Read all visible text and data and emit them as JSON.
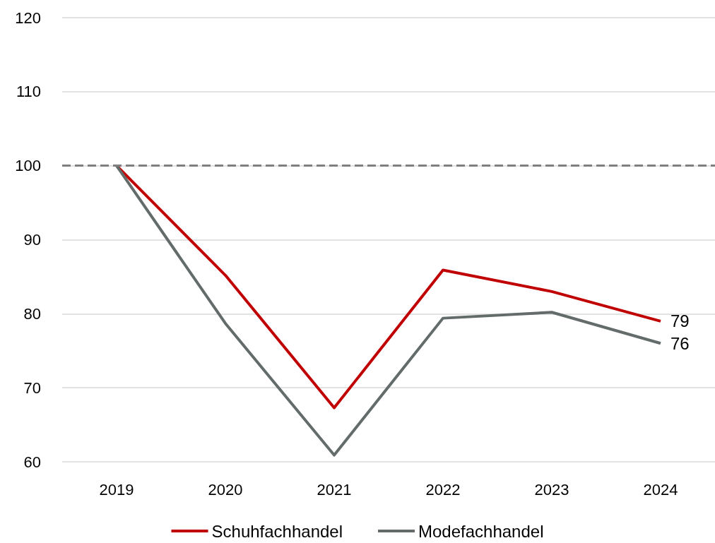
{
  "chart_data": {
    "type": "line",
    "categories": [
      "2019",
      "2020",
      "2021",
      "2022",
      "2023",
      "2024"
    ],
    "series": [
      {
        "name": "Schuhfachhandel",
        "color": "#c00000",
        "values": [
          100,
          85.2,
          67.3,
          85.9,
          83.0,
          79
        ],
        "value_labels": [
          null,
          null,
          null,
          null,
          null,
          "79"
        ]
      },
      {
        "name": "Modefachhandel",
        "color": "#636b6b",
        "values": [
          100,
          78.7,
          60.9,
          79.4,
          80.2,
          76
        ],
        "value_labels": [
          null,
          null,
          null,
          null,
          null,
          "76"
        ]
      }
    ],
    "ylim": [
      60,
      120
    ],
    "yticks": [
      60,
      70,
      80,
      90,
      100,
      110,
      120
    ],
    "ref_lines": [
      {
        "axis": "y",
        "value": 100,
        "color": "#7f7f7f",
        "line_style": "dashed"
      }
    ],
    "grid": "y",
    "legend": "bottom",
    "marker": "none",
    "line_style": "solid"
  }
}
